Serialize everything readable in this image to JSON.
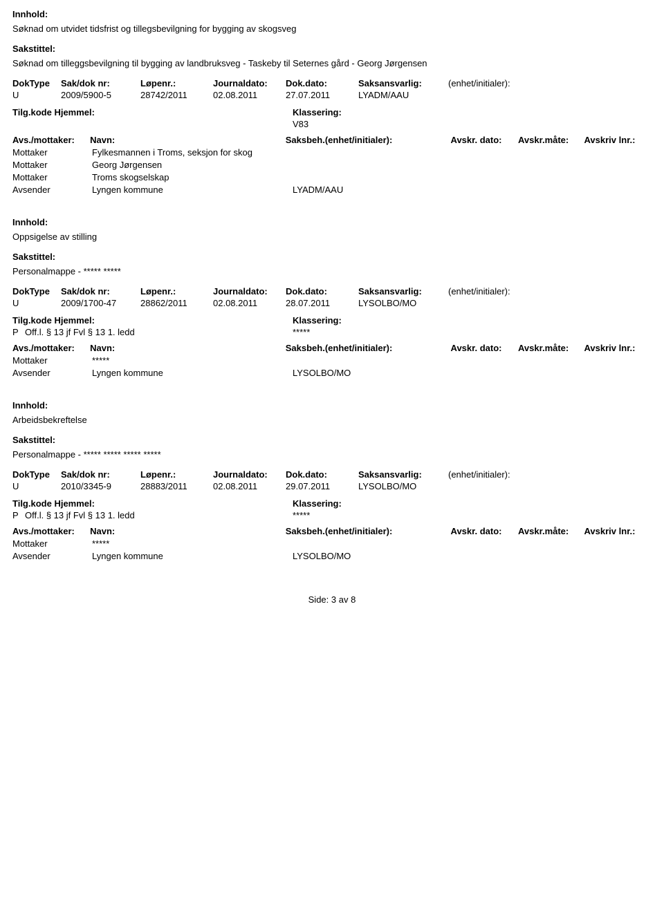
{
  "labels": {
    "innhold": "Innhold:",
    "sakstittel": "Sakstittel:",
    "doktype": "DokType",
    "sakdok": "Sak/dok nr:",
    "lopenr": "Løpenr.:",
    "journaldato": "Journaldato:",
    "dokdato": "Dok.dato:",
    "saksansvarlig": "Saksansvarlig:",
    "enhet_init": "(enhet/initialer):",
    "tilgkode": "Tilg.kode",
    "hjemmel": "Hjemmel:",
    "klassering": "Klassering:",
    "avs_mottaker": "Avs./mottaker:",
    "navn": "Navn:",
    "saksbeh_enhet": "Saksbeh.(enhet/initialer):",
    "avskr_dato": "Avskr. dato:",
    "avskr_mate": "Avskr.måte:",
    "avskriv_lnr": "Avskriv lnr.:"
  },
  "records": [
    {
      "innhold": "Søknad om utvidet tidsfrist  og tillegsbevilgning for bygging av skogsveg",
      "sakstittel": "Søknad om tilleggsbevilgning til bygging av landbruksveg - Taskeby til Seternes gård - Georg Jørgensen",
      "doktype": "U",
      "sakdok": "2009/5900-5",
      "lopenr": "28742/2011",
      "journaldato": "02.08.2011",
      "dokdato": "27.07.2011",
      "saksansvarlig": "LYADM/AAU",
      "enhet_init": "",
      "tilgkode": "",
      "hjemmel": "",
      "klassering": "V83",
      "parties": [
        {
          "role": "Mottaker",
          "name": "Fylkesmannen i Troms, seksjon for skog",
          "code": ""
        },
        {
          "role": "Mottaker",
          "name": "Georg Jørgensen",
          "code": ""
        },
        {
          "role": "Mottaker",
          "name": "Troms skogselskap",
          "code": ""
        },
        {
          "role": "Avsender",
          "name": "Lyngen kommune",
          "code": "LYADM/AAU"
        }
      ]
    },
    {
      "innhold": "Oppsigelse av stilling",
      "sakstittel": "Personalmappe - ***** *****",
      "doktype": "U",
      "sakdok": "2009/1700-47",
      "lopenr": "28862/2011",
      "journaldato": "02.08.2011",
      "dokdato": "28.07.2011",
      "saksansvarlig": "LYSOLBO/MO",
      "enhet_init": "",
      "tilgkode": "P",
      "hjemmel": "Off.l. § 13 jf Fvl § 13 1. ledd",
      "klassering": "*****",
      "parties": [
        {
          "role": "Mottaker",
          "name": "*****",
          "code": ""
        },
        {
          "role": "Avsender",
          "name": "Lyngen kommune",
          "code": "LYSOLBO/MO"
        }
      ]
    },
    {
      "innhold": "Arbeidsbekreftelse",
      "sakstittel": "Personalmappe - ***** ***** ***** *****",
      "doktype": "U",
      "sakdok": "2010/3345-9",
      "lopenr": "28883/2011",
      "journaldato": "02.08.2011",
      "dokdato": "29.07.2011",
      "saksansvarlig": "LYSOLBO/MO",
      "enhet_init": "",
      "tilgkode": "P",
      "hjemmel": "Off.l. § 13 jf Fvl § 13 1. ledd",
      "klassering": "*****",
      "parties": [
        {
          "role": "Mottaker",
          "name": "*****",
          "code": ""
        },
        {
          "role": "Avsender",
          "name": "Lyngen kommune",
          "code": "LYSOLBO/MO"
        }
      ]
    }
  ],
  "footer": {
    "side": "Side:",
    "current": "3",
    "av": "av",
    "total": "8"
  }
}
